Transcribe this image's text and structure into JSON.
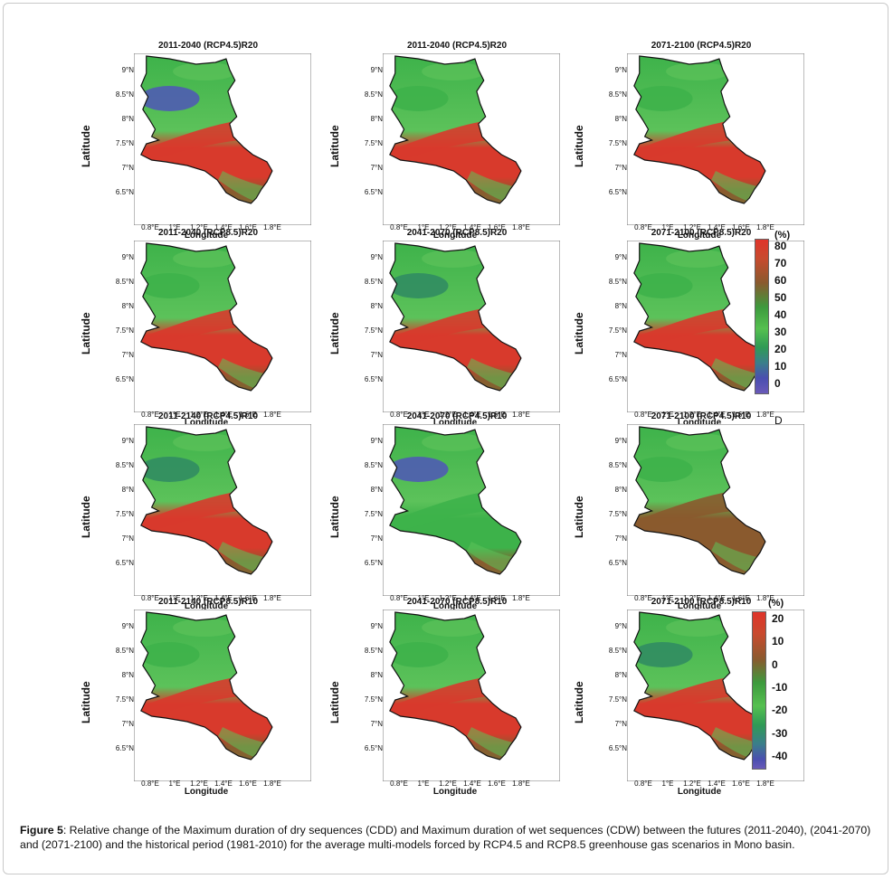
{
  "figure": {
    "caption_label": "Figure 5",
    "caption_text": ": Relative change of the Maximum duration of dry sequences (CDD) and Maximum duration of wet sequences (CDW) between the futures (2011-2040), (2041-2070) and (2071-2100) and the historical period (1981-2010) for the average multi-models forced by RCP4.5 and RCP8.5 greenhouse gas scenarios in Mono basin.",
    "panel_marker": "D"
  },
  "axes": {
    "ylabel": "Latitude",
    "xlabel": "Longitude",
    "lat_ticks": [
      "9°N",
      "8.5°N",
      "8°N",
      "7.5°N",
      "7°N",
      "6.5°N"
    ],
    "lon_ticks": [
      "0.8°E",
      "1°E",
      "1.2°E",
      "1.4°E",
      "1.6°E",
      "1.8°E"
    ]
  },
  "panels": [
    {
      "title": "2011-2040 (RCP4.5)R20",
      "north": "blue",
      "band": "red"
    },
    {
      "title": "2011-2040 (RCP4.5)R20",
      "north": "green",
      "band": "red"
    },
    {
      "title": "2071-2100 (RCP4.5)R20",
      "north": "green",
      "band": "red"
    },
    {
      "title": "2011-2040 (RCP8.5)R20",
      "north": "green",
      "band": "red"
    },
    {
      "title": "2041-2070 (RCP8.5)R20",
      "north": "teal",
      "band": "red"
    },
    {
      "title": "2071-2100 (RCP8.5)R20",
      "north": "green",
      "band": "red"
    },
    {
      "title": "2011-2140 (RCP4.5)R10",
      "north": "teal",
      "band": "red"
    },
    {
      "title": "2041-2070 (RCP4.5)R10",
      "north": "blue",
      "band": "green"
    },
    {
      "title": "2071-2100 (RCP4.5)R10",
      "north": "green",
      "band": "brown"
    },
    {
      "title": "2011-2140 (RCP8.5)R10",
      "north": "green",
      "band": "red"
    },
    {
      "title": "2041-2070 (RCP8.5)R10",
      "north": "green",
      "band": "red"
    },
    {
      "title": "2071-2100 (RCP8.5)R10",
      "north": "teal",
      "band": "red"
    }
  ],
  "legend_r20": {
    "unit": "(%)",
    "levels": [
      "80",
      "70",
      "60",
      "50",
      "40",
      "30",
      "20",
      "10",
      "0"
    ]
  },
  "legend_r10": {
    "unit": "(%)",
    "levels": [
      "20",
      "10",
      "0",
      "-10",
      "-20",
      "-30",
      "-40"
    ]
  },
  "colors": {
    "blue": "#4f56b8",
    "teal": "#2f8a63",
    "green": "#3db24a",
    "light_green": "#5cc25a",
    "red": "#d83a2c",
    "brown": "#8a5a2e",
    "olive": "#6f7a38"
  }
}
